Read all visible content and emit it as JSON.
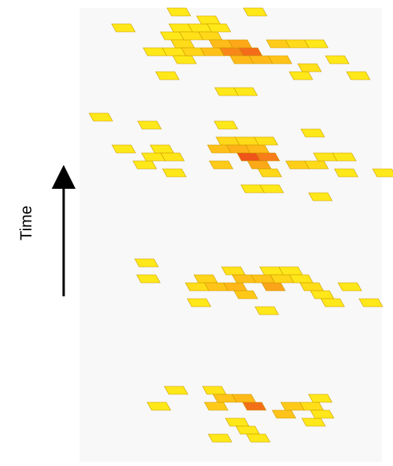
{
  "axis": {
    "label": "Time"
  },
  "layers": [
    {
      "name": "layer-4-top",
      "seed": 11,
      "extent": 6,
      "density": 0.62
    },
    {
      "name": "layer-3",
      "seed": 29,
      "extent": 6,
      "density": 0.58
    },
    {
      "name": "layer-2",
      "seed": 47,
      "extent": 5,
      "density": 0.55
    },
    {
      "name": "layer-1-bottom",
      "seed": 73,
      "extent": 5,
      "density": 0.52
    }
  ],
  "colors": {
    "background": "#f8f8f8",
    "cell_low": "#ffe600",
    "cell_mid": "#ffb000",
    "cell_high": "#e82000",
    "cell_stroke": "#c99a00",
    "arrow": "#000000"
  }
}
